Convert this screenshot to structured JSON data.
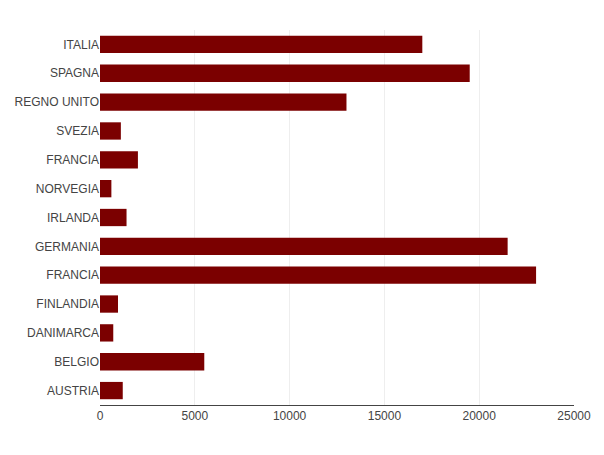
{
  "chart_data": {
    "type": "bar",
    "orientation": "horizontal",
    "categories": [
      "ITALIA",
      "SPAGNA",
      "REGNO UNITO",
      "SVEZIA",
      "FRANCIA",
      "NORVEGIA",
      "IRLANDA",
      "GERMANIA",
      "FRANCIA",
      "FINLANDIA",
      "DANIMARCA",
      "BELGIO",
      "AUSTRIA"
    ],
    "values": [
      17000,
      19500,
      13000,
      1100,
      2000,
      600,
      1400,
      21500,
      23000,
      950,
      700,
      5500,
      1200
    ],
    "color": "#7B0000",
    "xlim": [
      0,
      25000
    ],
    "xticks": [
      0,
      5000,
      10000,
      15000,
      20000,
      25000
    ],
    "grid": true
  }
}
